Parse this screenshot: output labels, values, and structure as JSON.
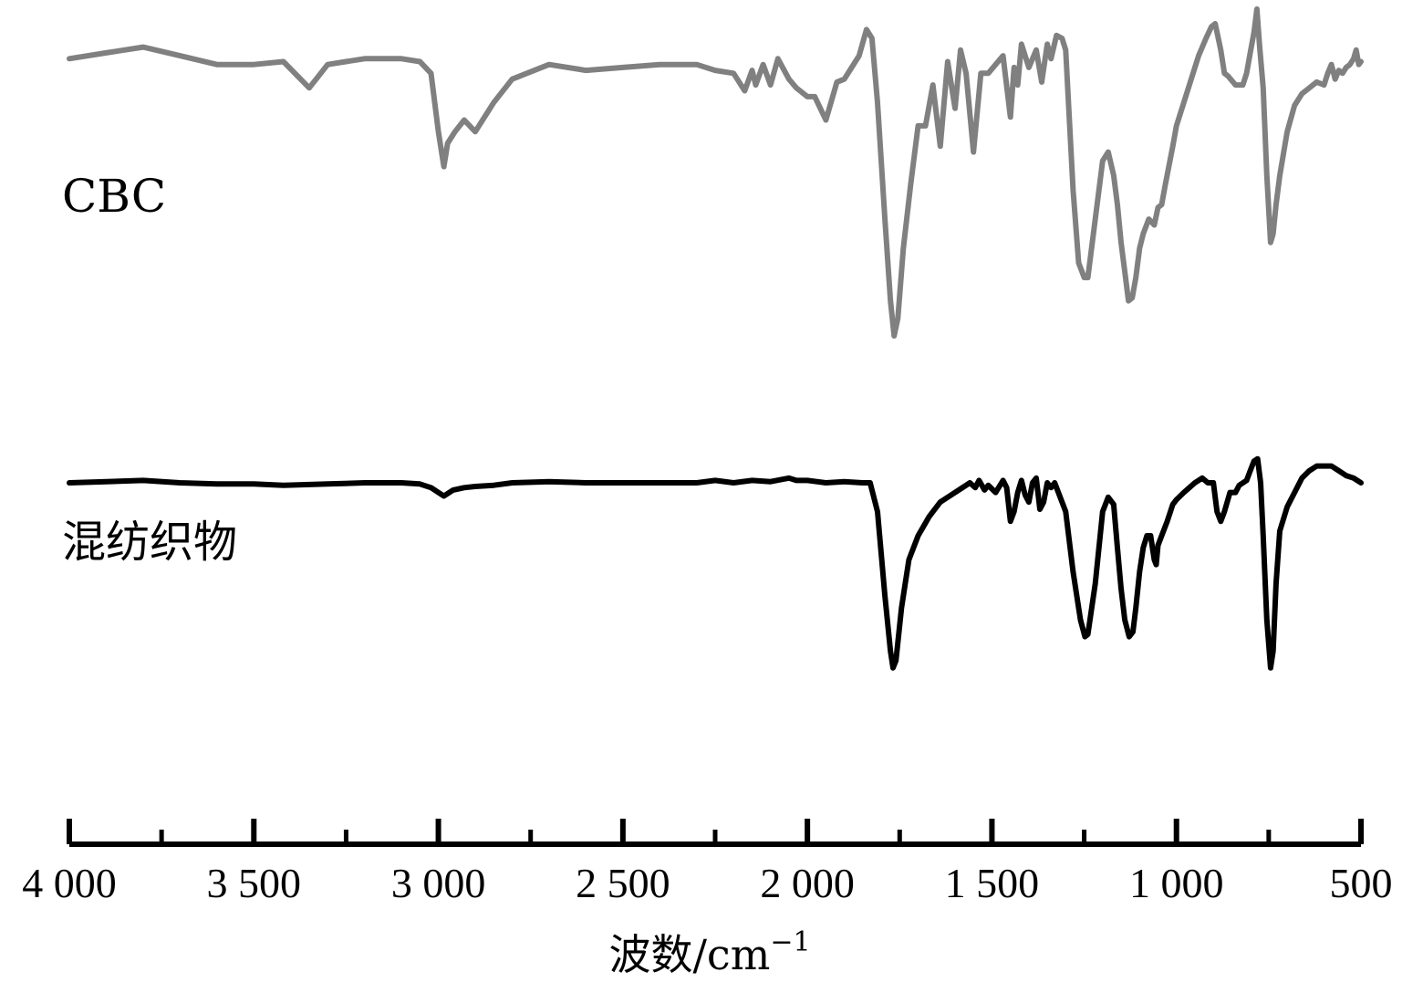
{
  "chart_data": {
    "type": "line",
    "title": "",
    "xlabel": "波数/cm",
    "xlabel_superscript": "−1",
    "ylabel": "",
    "xlim": [
      4000,
      500
    ],
    "x_reversed": true,
    "grid": false,
    "legend": "none",
    "x_ticks": [
      4000,
      3500,
      3000,
      2500,
      2000,
      1500,
      1000,
      500
    ],
    "x_tick_labels": [
      "4 000",
      "3 500",
      "3 000",
      "2 500",
      "2 000",
      "1 500",
      "1 000",
      "500"
    ],
    "x_minor_ticks": [
      3750,
      3250,
      2750,
      2250,
      1750,
      1250,
      750
    ],
    "series": [
      {
        "name": "CBC",
        "color": "#808080",
        "points": [
          [
            4000,
            0.95
          ],
          [
            3900,
            0.97
          ],
          [
            3800,
            0.99
          ],
          [
            3700,
            0.96
          ],
          [
            3600,
            0.93
          ],
          [
            3500,
            0.93
          ],
          [
            3420,
            0.94
          ],
          [
            3350,
            0.85
          ],
          [
            3300,
            0.93
          ],
          [
            3200,
            0.95
          ],
          [
            3100,
            0.95
          ],
          [
            3050,
            0.94
          ],
          [
            3020,
            0.9
          ],
          [
            3000,
            0.7
          ],
          [
            2985,
            0.58
          ],
          [
            2975,
            0.66
          ],
          [
            2955,
            0.7
          ],
          [
            2930,
            0.74
          ],
          [
            2900,
            0.7
          ],
          [
            2850,
            0.8
          ],
          [
            2800,
            0.88
          ],
          [
            2700,
            0.93
          ],
          [
            2600,
            0.91
          ],
          [
            2500,
            0.92
          ],
          [
            2400,
            0.93
          ],
          [
            2300,
            0.93
          ],
          [
            2250,
            0.91
          ],
          [
            2200,
            0.9
          ],
          [
            2170,
            0.84
          ],
          [
            2150,
            0.91
          ],
          [
            2140,
            0.86
          ],
          [
            2120,
            0.93
          ],
          [
            2100,
            0.86
          ],
          [
            2080,
            0.95
          ],
          [
            2050,
            0.88
          ],
          [
            2030,
            0.85
          ],
          [
            2000,
            0.82
          ],
          [
            1980,
            0.82
          ],
          [
            1950,
            0.74
          ],
          [
            1920,
            0.87
          ],
          [
            1900,
            0.88
          ],
          [
            1880,
            0.92
          ],
          [
            1860,
            0.96
          ],
          [
            1840,
            1.05
          ],
          [
            1825,
            1.02
          ],
          [
            1810,
            0.8
          ],
          [
            1790,
            0.4
          ],
          [
            1775,
            0.12
          ],
          [
            1765,
            0.0
          ],
          [
            1755,
            0.06
          ],
          [
            1740,
            0.3
          ],
          [
            1720,
            0.52
          ],
          [
            1700,
            0.72
          ],
          [
            1680,
            0.72
          ],
          [
            1660,
            0.86
          ],
          [
            1640,
            0.65
          ],
          [
            1620,
            0.94
          ],
          [
            1600,
            0.78
          ],
          [
            1585,
            0.98
          ],
          [
            1570,
            0.9
          ],
          [
            1550,
            0.63
          ],
          [
            1530,
            0.9
          ],
          [
            1510,
            0.9
          ],
          [
            1490,
            0.93
          ],
          [
            1470,
            0.96
          ],
          [
            1450,
            0.75
          ],
          [
            1440,
            0.92
          ],
          [
            1430,
            0.86
          ],
          [
            1420,
            1.0
          ],
          [
            1400,
            0.92
          ],
          [
            1380,
            0.98
          ],
          [
            1365,
            0.87
          ],
          [
            1350,
            1.0
          ],
          [
            1340,
            0.95
          ],
          [
            1325,
            1.03
          ],
          [
            1310,
            1.02
          ],
          [
            1300,
            0.98
          ],
          [
            1280,
            0.5
          ],
          [
            1265,
            0.25
          ],
          [
            1250,
            0.2
          ],
          [
            1240,
            0.2
          ],
          [
            1220,
            0.4
          ],
          [
            1200,
            0.6
          ],
          [
            1185,
            0.63
          ],
          [
            1170,
            0.55
          ],
          [
            1160,
            0.45
          ],
          [
            1150,
            0.32
          ],
          [
            1140,
            0.22
          ],
          [
            1130,
            0.12
          ],
          [
            1120,
            0.13
          ],
          [
            1110,
            0.2
          ],
          [
            1100,
            0.3
          ],
          [
            1090,
            0.35
          ],
          [
            1075,
            0.4
          ],
          [
            1060,
            0.38
          ],
          [
            1050,
            0.44
          ],
          [
            1040,
            0.45
          ],
          [
            1030,
            0.52
          ],
          [
            1010,
            0.65
          ],
          [
            1000,
            0.72
          ],
          [
            980,
            0.8
          ],
          [
            960,
            0.88
          ],
          [
            940,
            0.96
          ],
          [
            920,
            1.02
          ],
          [
            905,
            1.06
          ],
          [
            895,
            1.07
          ],
          [
            880,
            0.98
          ],
          [
            870,
            0.9
          ],
          [
            860,
            0.89
          ],
          [
            840,
            0.86
          ],
          [
            820,
            0.86
          ],
          [
            810,
            0.9
          ],
          [
            800,
            0.97
          ],
          [
            790,
            1.04
          ],
          [
            782,
            1.12
          ],
          [
            775,
            1.0
          ],
          [
            765,
            0.85
          ],
          [
            755,
            0.55
          ],
          [
            745,
            0.32
          ],
          [
            738,
            0.35
          ],
          [
            730,
            0.45
          ],
          [
            720,
            0.55
          ],
          [
            700,
            0.7
          ],
          [
            680,
            0.79
          ],
          [
            660,
            0.83
          ],
          [
            640,
            0.85
          ],
          [
            620,
            0.87
          ],
          [
            600,
            0.86
          ],
          [
            590,
            0.9
          ],
          [
            580,
            0.93
          ],
          [
            570,
            0.88
          ],
          [
            560,
            0.91
          ],
          [
            550,
            0.9
          ],
          [
            540,
            0.92
          ],
          [
            530,
            0.93
          ],
          [
            520,
            0.95
          ],
          [
            513,
            0.98
          ],
          [
            506,
            0.93
          ],
          [
            500,
            0.94
          ]
        ]
      },
      {
        "name": "混纺织物",
        "color": "#000000",
        "points": [
          [
            4000,
            0.82
          ],
          [
            3900,
            0.825
          ],
          [
            3800,
            0.83
          ],
          [
            3700,
            0.82
          ],
          [
            3600,
            0.815
          ],
          [
            3500,
            0.815
          ],
          [
            3420,
            0.81
          ],
          [
            3300,
            0.815
          ],
          [
            3200,
            0.82
          ],
          [
            3100,
            0.82
          ],
          [
            3050,
            0.815
          ],
          [
            3020,
            0.8
          ],
          [
            3000,
            0.78
          ],
          [
            2985,
            0.765
          ],
          [
            2960,
            0.79
          ],
          [
            2930,
            0.8
          ],
          [
            2900,
            0.805
          ],
          [
            2850,
            0.81
          ],
          [
            2800,
            0.82
          ],
          [
            2700,
            0.825
          ],
          [
            2600,
            0.82
          ],
          [
            2500,
            0.82
          ],
          [
            2400,
            0.82
          ],
          [
            2300,
            0.82
          ],
          [
            2250,
            0.83
          ],
          [
            2200,
            0.82
          ],
          [
            2150,
            0.83
          ],
          [
            2100,
            0.825
          ],
          [
            2050,
            0.84
          ],
          [
            2030,
            0.83
          ],
          [
            2000,
            0.83
          ],
          [
            1950,
            0.82
          ],
          [
            1900,
            0.825
          ],
          [
            1850,
            0.82
          ],
          [
            1830,
            0.82
          ],
          [
            1810,
            0.7
          ],
          [
            1790,
            0.35
          ],
          [
            1775,
            0.12
          ],
          [
            1768,
            0.05
          ],
          [
            1760,
            0.08
          ],
          [
            1745,
            0.3
          ],
          [
            1725,
            0.5
          ],
          [
            1700,
            0.6
          ],
          [
            1670,
            0.68
          ],
          [
            1640,
            0.74
          ],
          [
            1610,
            0.77
          ],
          [
            1580,
            0.8
          ],
          [
            1560,
            0.82
          ],
          [
            1545,
            0.8
          ],
          [
            1535,
            0.83
          ],
          [
            1520,
            0.79
          ],
          [
            1510,
            0.81
          ],
          [
            1490,
            0.78
          ],
          [
            1470,
            0.83
          ],
          [
            1460,
            0.8
          ],
          [
            1450,
            0.66
          ],
          [
            1440,
            0.7
          ],
          [
            1430,
            0.78
          ],
          [
            1420,
            0.83
          ],
          [
            1410,
            0.77
          ],
          [
            1400,
            0.74
          ],
          [
            1390,
            0.82
          ],
          [
            1380,
            0.84
          ],
          [
            1370,
            0.71
          ],
          [
            1360,
            0.74
          ],
          [
            1350,
            0.82
          ],
          [
            1340,
            0.8
          ],
          [
            1330,
            0.82
          ],
          [
            1300,
            0.7
          ],
          [
            1280,
            0.45
          ],
          [
            1260,
            0.25
          ],
          [
            1248,
            0.18
          ],
          [
            1240,
            0.19
          ],
          [
            1220,
            0.4
          ],
          [
            1200,
            0.7
          ],
          [
            1185,
            0.76
          ],
          [
            1170,
            0.73
          ],
          [
            1160,
            0.55
          ],
          [
            1150,
            0.38
          ],
          [
            1140,
            0.25
          ],
          [
            1128,
            0.18
          ],
          [
            1118,
            0.2
          ],
          [
            1110,
            0.3
          ],
          [
            1100,
            0.45
          ],
          [
            1090,
            0.55
          ],
          [
            1080,
            0.6
          ],
          [
            1070,
            0.6
          ],
          [
            1060,
            0.5
          ],
          [
            1055,
            0.48
          ],
          [
            1050,
            0.56
          ],
          [
            1040,
            0.6
          ],
          [
            1025,
            0.66
          ],
          [
            1010,
            0.73
          ],
          [
            1000,
            0.75
          ],
          [
            980,
            0.78
          ],
          [
            950,
            0.82
          ],
          [
            930,
            0.84
          ],
          [
            915,
            0.82
          ],
          [
            900,
            0.82
          ],
          [
            890,
            0.7
          ],
          [
            880,
            0.66
          ],
          [
            870,
            0.7
          ],
          [
            855,
            0.78
          ],
          [
            840,
            0.78
          ],
          [
            830,
            0.81
          ],
          [
            810,
            0.83
          ],
          [
            800,
            0.87
          ],
          [
            790,
            0.91
          ],
          [
            780,
            0.92
          ],
          [
            772,
            0.82
          ],
          [
            765,
            0.6
          ],
          [
            755,
            0.25
          ],
          [
            745,
            0.05
          ],
          [
            738,
            0.12
          ],
          [
            730,
            0.4
          ],
          [
            720,
            0.62
          ],
          [
            700,
            0.72
          ],
          [
            680,
            0.78
          ],
          [
            660,
            0.84
          ],
          [
            640,
            0.87
          ],
          [
            620,
            0.89
          ],
          [
            600,
            0.89
          ],
          [
            580,
            0.89
          ],
          [
            560,
            0.87
          ],
          [
            540,
            0.85
          ],
          [
            520,
            0.84
          ],
          [
            500,
            0.82
          ]
        ]
      }
    ]
  }
}
